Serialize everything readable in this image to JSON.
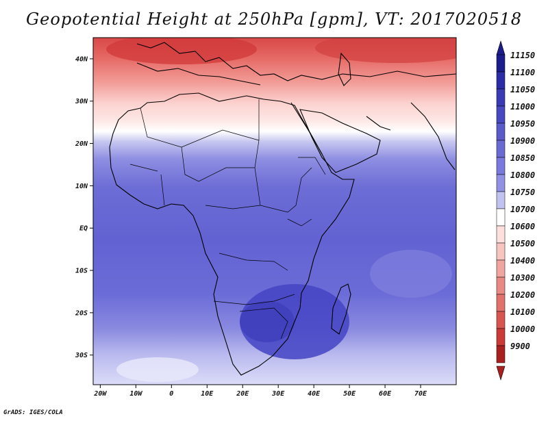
{
  "title": "Geopotential Height at 250hPa [gpm], VT: 2017020518",
  "credit": "GrADS: IGES/COLA",
  "map": {
    "lat_labels": [
      "40N",
      "30N",
      "20N",
      "10N",
      "EQ",
      "10S",
      "20S",
      "30S"
    ],
    "lat_values": [
      40,
      30,
      20,
      10,
      0,
      -10,
      -20,
      -30
    ],
    "lon_labels": [
      "20W",
      "10W",
      "0",
      "10E",
      "20E",
      "30E",
      "40E",
      "50E",
      "60E",
      "70E"
    ],
    "lon_values": [
      -20,
      -10,
      0,
      10,
      20,
      30,
      40,
      50,
      60,
      70
    ],
    "lon_range": [
      -22,
      80
    ],
    "lat_range": [
      -37,
      45
    ]
  },
  "colorbar": {
    "labels": [
      "11150",
      "11100",
      "11050",
      "11000",
      "10950",
      "10900",
      "10850",
      "10800",
      "10750",
      "10700",
      "10600",
      "10500",
      "10400",
      "10300",
      "10200",
      "10100",
      "10000",
      "9900"
    ],
    "colors": [
      "#1c1c8c",
      "#2c2ca6",
      "#3a3ab4",
      "#4848c0",
      "#5a5aca",
      "#6a6ad4",
      "#7a7ade",
      "#9090e4",
      "#c2c2f0",
      "#ffffff",
      "#fde0de",
      "#f8c4c0",
      "#f2a4a0",
      "#ea8884",
      "#e2706c",
      "#d85450",
      "#cc3a38",
      "#a82020"
    ]
  }
}
